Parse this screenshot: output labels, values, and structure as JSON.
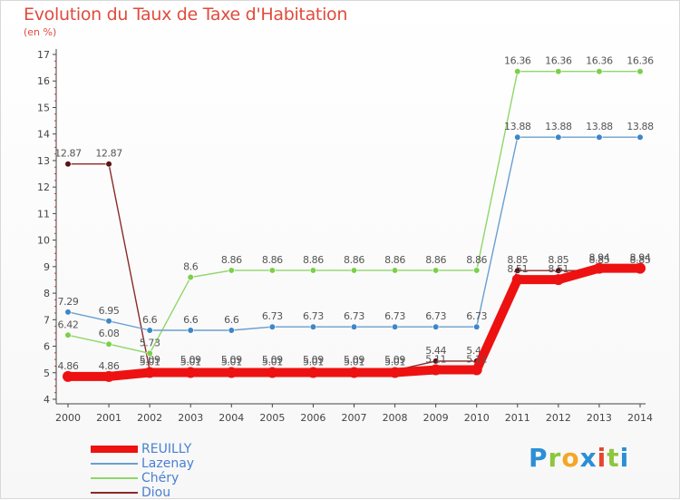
{
  "title": "Evolution du Taux de Taxe d'Habitation",
  "subtitle": "(en %)",
  "logo": {
    "letters": [
      {
        "char": "P",
        "color": "#2a8fd6"
      },
      {
        "char": "r",
        "color": "#8dc63f"
      },
      {
        "char": "o",
        "color": "#f5a623"
      },
      {
        "char": "x",
        "color": "#2a8fd6"
      },
      {
        "char": "i",
        "color": "#e8442e"
      },
      {
        "char": "t",
        "color": "#8dc63f"
      },
      {
        "char": "i",
        "color": "#2a8fd6"
      }
    ]
  },
  "chart_data": {
    "type": "line",
    "x": [
      2000,
      2001,
      2002,
      2003,
      2004,
      2005,
      2006,
      2007,
      2008,
      2009,
      2010,
      2011,
      2012,
      2013,
      2014
    ],
    "ylim": [
      4,
      17
    ],
    "yticks": [
      4,
      5,
      6,
      7,
      8,
      9,
      10,
      11,
      12,
      13,
      14,
      15,
      16,
      17
    ],
    "grid": false,
    "legend": "bottom-left",
    "series": [
      {
        "name": "Diou",
        "color": "#8b2a2a",
        "marker": "#5a1414",
        "values": [
          12.87,
          12.87,
          5.09,
          5.09,
          5.09,
          5.09,
          5.09,
          5.09,
          5.09,
          5.44,
          5.44,
          8.85,
          8.85,
          8.85,
          8.85
        ],
        "labels": [
          "12.87",
          "12.87",
          "5.09",
          "5.09",
          "5.09",
          "5.09",
          "5.09",
          "5.09",
          "5.09",
          "5.44",
          "5.44",
          "8.85",
          "8.85",
          "8.85",
          "8.85"
        ]
      },
      {
        "name": "Chéry",
        "color": "#8fd66a",
        "marker": "#7ccf4a",
        "values": [
          6.42,
          6.08,
          5.73,
          8.6,
          8.86,
          8.86,
          8.86,
          8.86,
          8.86,
          8.86,
          8.86,
          16.36,
          16.36,
          16.36,
          16.36
        ],
        "labels": [
          "6.42",
          "6.08",
          "5.73",
          "8.6",
          "8.86",
          "8.86",
          "8.86",
          "8.86",
          "8.86",
          "8.86",
          "8.86",
          "16.36",
          "16.36",
          "16.36",
          "16.36"
        ]
      },
      {
        "name": "Lazenay",
        "color": "#6a9fd0",
        "marker": "#3f86c8",
        "values": [
          7.29,
          6.95,
          6.6,
          6.6,
          6.6,
          6.73,
          6.73,
          6.73,
          6.73,
          6.73,
          6.73,
          13.88,
          13.88,
          13.88,
          13.88
        ],
        "labels": [
          "7.29",
          "6.95",
          "6.6",
          "6.6",
          "6.6",
          "6.73",
          "6.73",
          "6.73",
          "6.73",
          "6.73",
          "6.73",
          "13.88",
          "13.88",
          "13.88",
          "13.88"
        ]
      },
      {
        "name": "REUILLY",
        "color": "#ee1111",
        "marker": "#ee1111",
        "thick": true,
        "values": [
          4.86,
          4.86,
          5.01,
          5.01,
          5.01,
          5.01,
          5.01,
          5.01,
          5.01,
          5.11,
          5.11,
          8.51,
          8.51,
          8.94,
          8.94
        ],
        "labels": [
          "4.86",
          "4.86",
          "5.01",
          "5.01",
          "5.01",
          "5.01",
          "5.01",
          "5.01",
          "5.01",
          "5.11",
          "5.11",
          "8.51",
          "8.51",
          "8.94",
          "8.94"
        ]
      }
    ],
    "legend_order": [
      {
        "name": "REUILLY",
        "color": "#ee1111",
        "label_color": "#4a7fd0",
        "thick": true
      },
      {
        "name": "Lazenay",
        "color": "#6a9fd0",
        "label_color": "#4a7fd0"
      },
      {
        "name": "Chéry",
        "color": "#8fd66a",
        "label_color": "#4a7fd0"
      },
      {
        "name": "Diou",
        "color": "#8b2a2a",
        "label_color": "#4a7fd0"
      }
    ]
  }
}
